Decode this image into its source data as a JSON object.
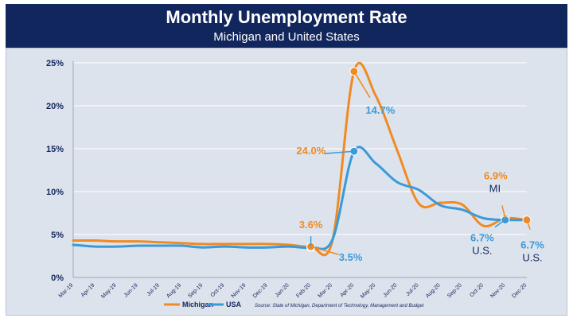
{
  "chart_data": {
    "type": "line",
    "title": "Monthly Unemployment Rate",
    "subtitle": "Michigan and United States",
    "categories": [
      "Mar-19",
      "Apr-19",
      "May-19",
      "Jun-19",
      "Jul-19",
      "Aug-19",
      "Sep-19",
      "Oct-19",
      "Nov-19",
      "Dec-19",
      "Jan-20",
      "Feb-20",
      "Mar-20",
      "Apr-20",
      "May-20",
      "Jun-20",
      "Jul-20",
      "Aug-20",
      "Sep-20",
      "Oct-20",
      "Nov-20",
      "Dec-20"
    ],
    "ylim": [
      0,
      25
    ],
    "y_ticks": [
      {
        "value": 0,
        "label": "0%"
      },
      {
        "value": 5,
        "label": "5%"
      },
      {
        "value": 10,
        "label": "10%"
      },
      {
        "value": 15,
        "label": "15%"
      },
      {
        "value": 20,
        "label": "20%"
      },
      {
        "value": 25,
        "label": "25%"
      }
    ],
    "grid": "horizontal",
    "legend_position": "bottom-left",
    "series": [
      {
        "name": "Michigan",
        "color": "#f08a24",
        "values": [
          4.3,
          4.3,
          4.2,
          4.2,
          4.1,
          4.0,
          3.9,
          3.9,
          3.9,
          3.9,
          3.8,
          3.6,
          4.3,
          24.0,
          21.2,
          14.8,
          8.6,
          8.7,
          8.5,
          6.0,
          6.9,
          6.7
        ]
      },
      {
        "name": "USA",
        "color": "#3a9ad9",
        "values": [
          3.8,
          3.6,
          3.6,
          3.7,
          3.7,
          3.7,
          3.5,
          3.6,
          3.5,
          3.5,
          3.6,
          3.5,
          4.4,
          14.7,
          13.3,
          11.1,
          10.2,
          8.4,
          7.9,
          6.9,
          6.7,
          6.7
        ]
      }
    ],
    "annotations": [
      {
        "text": "24.0%",
        "color": "#f08a24"
      },
      {
        "text": "14.7%",
        "color": "#3a9ad9"
      },
      {
        "text": "3.6%",
        "color": "#f08a24"
      },
      {
        "text": "3.5%",
        "color": "#3a9ad9"
      },
      {
        "text": "6.9%",
        "color": "#f08a24"
      },
      {
        "text": "MI",
        "color": "#12265e"
      },
      {
        "text": "6.7%",
        "color": "#3a9ad9"
      },
      {
        "text": "U.S.",
        "color": "#12265e"
      },
      {
        "text": "6.7%",
        "color": "#3a9ad9"
      },
      {
        "text": "U.S.",
        "color": "#12265e"
      }
    ],
    "source": "Source: State of Michigan, Department of Technology, Management and Budget"
  },
  "colors": {
    "header_bg": "#12265e",
    "axis_text": "#12265e",
    "panel_bg": "#dde3ec",
    "grid": "#ffffff"
  }
}
